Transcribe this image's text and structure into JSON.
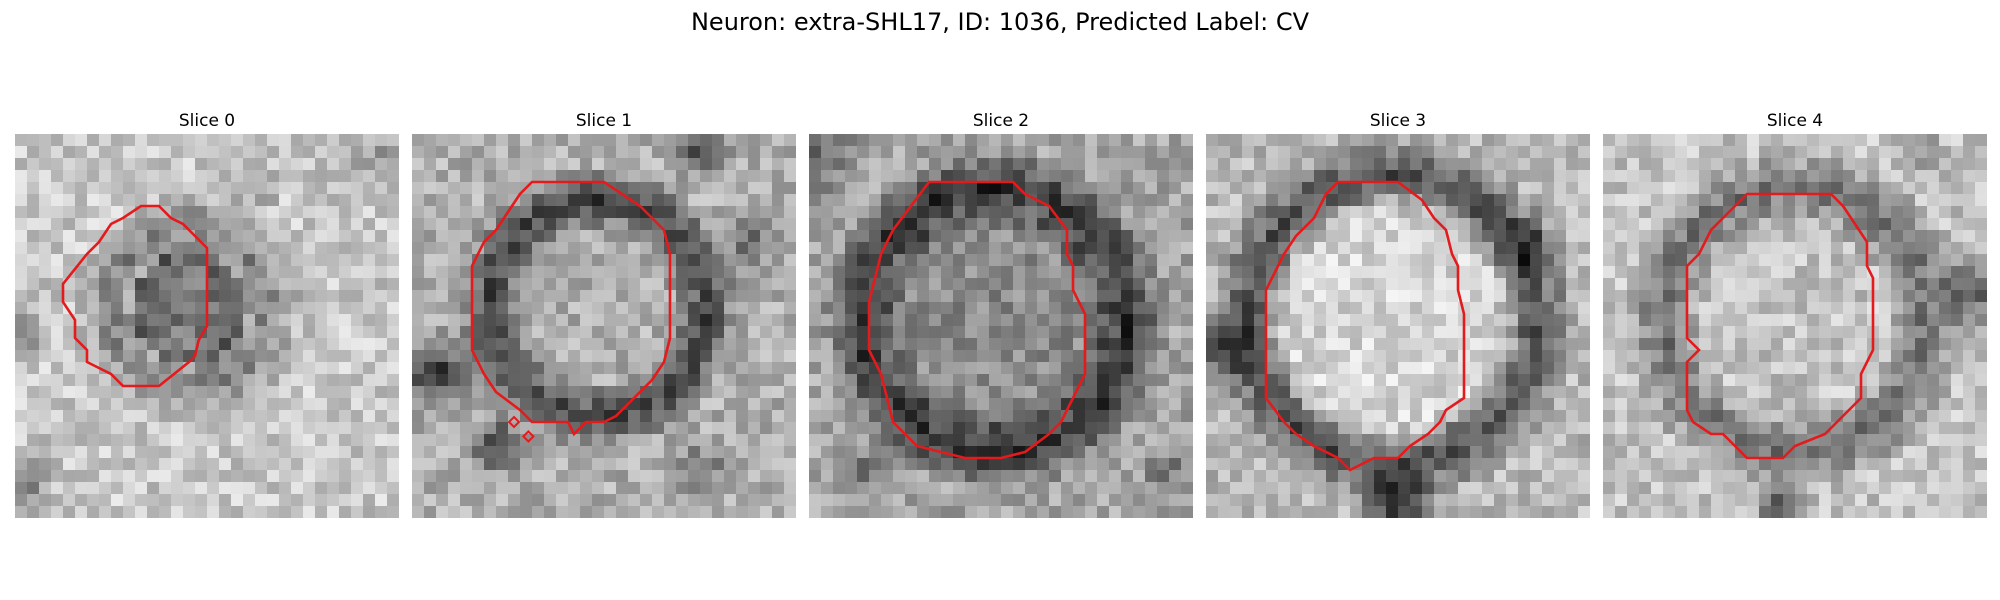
{
  "figure": {
    "title": "Neuron: extra-SHL17, ID: 1036, Predicted Label: CV"
  },
  "slices": [
    {
      "title": "Slice 0"
    },
    {
      "title": "Slice 1"
    },
    {
      "title": "Slice 2"
    },
    {
      "title": "Slice 3"
    },
    {
      "title": "Slice 4"
    }
  ],
  "colors": {
    "contour": "#e41a1c",
    "background": "#ffffff"
  }
}
